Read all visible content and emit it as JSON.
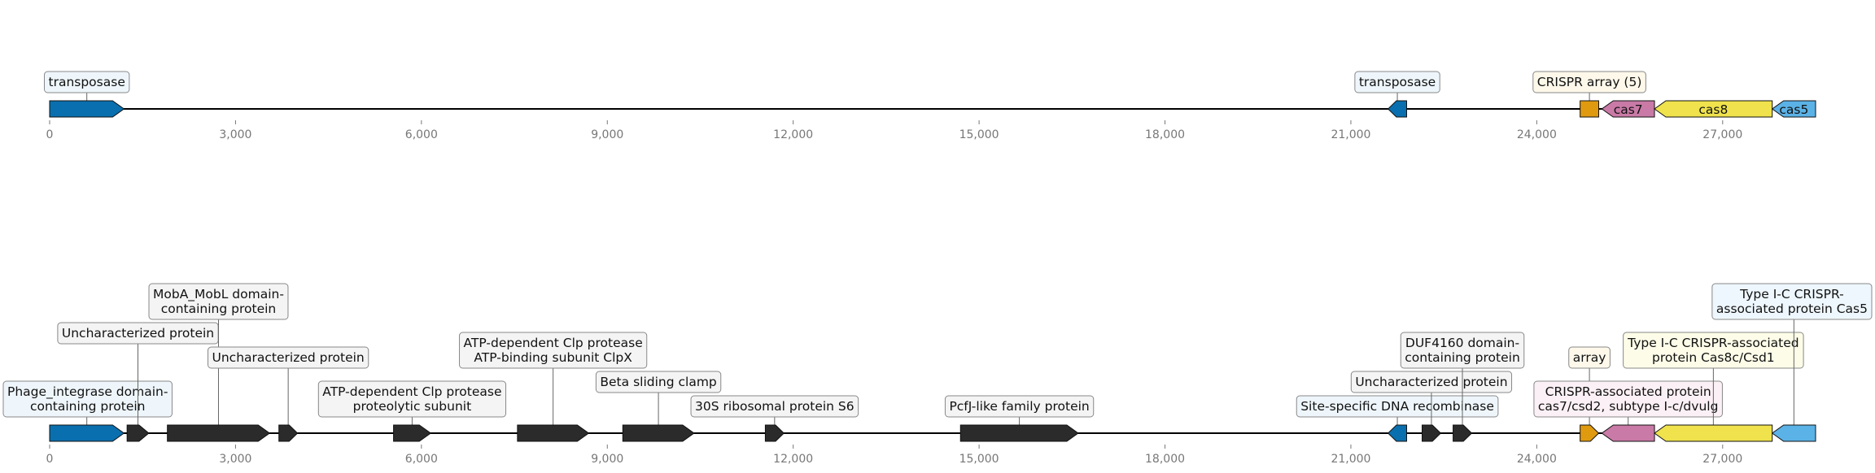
{
  "axis": {
    "min": 0,
    "max": 28500,
    "tick_values": [
      0,
      3000,
      6000,
      9000,
      12000,
      15000,
      18000,
      21000,
      24000,
      27000
    ],
    "tick_labels": [
      "0",
      "3,000",
      "6,000",
      "9,000",
      "12,000",
      "15,000",
      "18,000",
      "21,000",
      "24,000",
      "27,000"
    ]
  },
  "colors": {
    "transposase": "#0a6fae",
    "array": "#e09a0f",
    "cas7": "#c97aa6",
    "cas8": "#efe24c",
    "cas5": "#5bb2e6",
    "other": "#2b2b2b",
    "box_transposase": "#eef6fb",
    "box_array": "#fdf8ea",
    "box_cas7": "#fbf0f5",
    "box_cas8": "#fdfce8",
    "box_cas5": "#eef7fd",
    "box_other": "#f4f4f4"
  },
  "tracks": [
    {
      "name": "track-top",
      "features": [
        {
          "start": 0,
          "end": 1200,
          "strand": 1,
          "kind": "transposase",
          "label": "transposase",
          "level": 0
        },
        {
          "start": 21600,
          "end": 21900,
          "strand": -1,
          "kind": "transposase",
          "label": "transposase",
          "level": 0
        },
        {
          "start": 24700,
          "end": 25000,
          "strand": 0,
          "kind": "array",
          "label": "CRISPR array (5)",
          "level": 0
        },
        {
          "start": 25050,
          "end": 25900,
          "strand": -1,
          "kind": "cas7",
          "label": "cas7",
          "inside": true
        },
        {
          "start": 25900,
          "end": 27800,
          "strand": -1,
          "kind": "cas8",
          "label": "cas8",
          "inside": true
        },
        {
          "start": 27800,
          "end": 28500,
          "strand": -1,
          "kind": "cas5",
          "label": "cas5",
          "inside": true
        }
      ]
    },
    {
      "name": "track-bottom",
      "features": [
        {
          "start": 0,
          "end": 1200,
          "strand": 1,
          "kind": "transposase",
          "label": "Phage_integrase domain-\ncontaining protein",
          "level": 0
        },
        {
          "start": 1250,
          "end": 1600,
          "strand": 1,
          "kind": "other",
          "label": "Uncharacterized protein",
          "level": 3
        },
        {
          "start": 1900,
          "end": 3550,
          "strand": 1,
          "kind": "other",
          "label": "MobA_MobL domain-\ncontaining protein",
          "level": 4
        },
        {
          "start": 3700,
          "end": 4000,
          "strand": 1,
          "kind": "other",
          "label": "Uncharacterized protein",
          "level": 2
        },
        {
          "start": 5550,
          "end": 6150,
          "strand": 1,
          "kind": "other",
          "label": "ATP-dependent Clp protease\nproteolytic subunit",
          "level": 0
        },
        {
          "start": 7550,
          "end": 8700,
          "strand": 1,
          "kind": "other",
          "label": "ATP-dependent Clp protease\nATP-binding subunit ClpX",
          "level": 2
        },
        {
          "start": 9250,
          "end": 10400,
          "strand": 1,
          "kind": "other",
          "label": "Beta sliding clamp",
          "level": 1
        },
        {
          "start": 11550,
          "end": 11850,
          "strand": 1,
          "kind": "other",
          "label": "30S ribosomal protein S6",
          "level": 0
        },
        {
          "start": 14700,
          "end": 16600,
          "strand": 1,
          "kind": "other",
          "label": "PcfJ-like family protein",
          "level": 0
        },
        {
          "start": 21600,
          "end": 21900,
          "strand": -1,
          "kind": "transposase",
          "label": "Site-specific DNA recombinase",
          "level": 0
        },
        {
          "start": 22150,
          "end": 22450,
          "strand": 1,
          "kind": "other",
          "label": "Uncharacterized protein",
          "level": 1
        },
        {
          "start": 22650,
          "end": 22950,
          "strand": 1,
          "kind": "other",
          "label": "DUF4160 domain-\ncontaining protein",
          "level": 2
        },
        {
          "start": 24700,
          "end": 25000,
          "strand": 1,
          "kind": "array",
          "label": "array",
          "level": 2
        },
        {
          "start": 25050,
          "end": 25900,
          "strand": -1,
          "kind": "cas7",
          "label": "CRISPR-associated protein\ncas7/csd2, subtype I-c/dvulg",
          "level": 0
        },
        {
          "start": 25900,
          "end": 27800,
          "strand": -1,
          "kind": "cas8",
          "label": "Type I-C CRISPR-associated\nprotein Cas8c/Csd1",
          "level": 2
        },
        {
          "start": 27800,
          "end": 28500,
          "strand": -1,
          "kind": "cas5",
          "label": "Type I-C CRISPR-\nassociated protein Cas5",
          "level": 4
        }
      ]
    }
  ]
}
